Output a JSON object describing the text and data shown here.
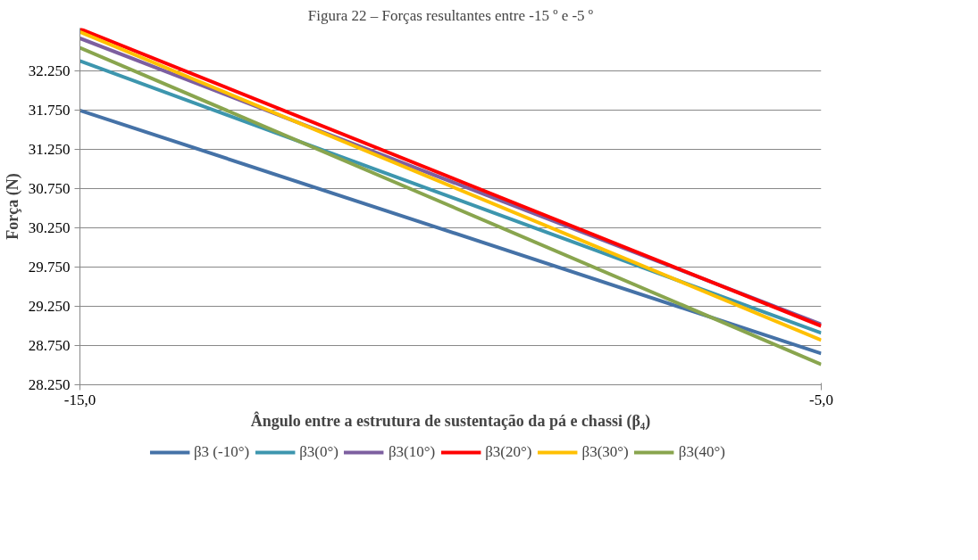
{
  "chart_data": {
    "type": "line",
    "title": "Figura 22 – Forças resultantes entre -15 º e -5 º",
    "xlabel": "Ângulo entre a estrutura de sustentação da pá e chassi (β₄)",
    "ylabel": "Força (N)",
    "x": [
      -15,
      -5
    ],
    "series": [
      {
        "name": "β3 (-10°)",
        "color": "#4572a7",
        "values": [
          31750,
          28650
        ]
      },
      {
        "name": "β3(0°)",
        "color": "#3d96ae",
        "values": [
          32380,
          28910
        ]
      },
      {
        "name": "β3(10°)",
        "color": "#7d5fa0",
        "values": [
          32670,
          29020
        ]
      },
      {
        "name": "β3(20°)",
        "color": "#ff0000",
        "values": [
          32790,
          29000
        ]
      },
      {
        "name": "β3(30°)",
        "color": "#ffc000",
        "values": [
          32750,
          28820
        ]
      },
      {
        "name": "β3(40°)",
        "color": "#89a54e",
        "values": [
          32550,
          28510
        ]
      }
    ],
    "xlim": [
      -15,
      -5
    ],
    "ylim": [
      28250,
      32800
    ],
    "xticks": [
      {
        "value": -15,
        "label": "-15,0"
      },
      {
        "value": -5,
        "label": "-5,0"
      }
    ],
    "yticks": [
      {
        "value": 28250,
        "label": "28.250"
      },
      {
        "value": 28750,
        "label": "28.750"
      },
      {
        "value": 29250,
        "label": "29.250"
      },
      {
        "value": 29750,
        "label": "29.750"
      },
      {
        "value": 30250,
        "label": "30.250"
      },
      {
        "value": 30750,
        "label": "30.750"
      },
      {
        "value": 31250,
        "label": "31.250"
      },
      {
        "value": 31750,
        "label": "31.750"
      },
      {
        "value": 32250,
        "label": "32.250"
      }
    ],
    "grid": "y",
    "legend": "bottom",
    "marker": "none",
    "line_style": "solid"
  }
}
